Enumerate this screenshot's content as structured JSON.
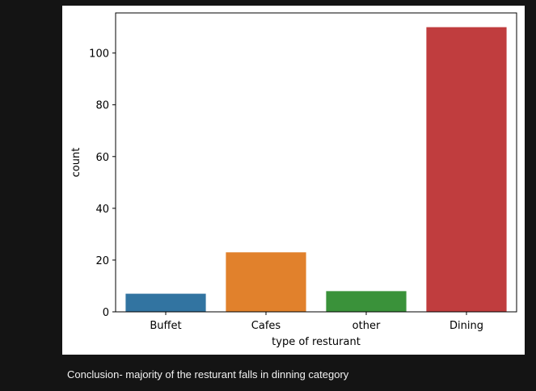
{
  "chart_data": {
    "type": "bar",
    "categories": [
      "Buffet",
      "Cafes",
      "other",
      "Dining"
    ],
    "values": [
      7,
      23,
      8,
      110
    ],
    "colors": [
      "#3274a1",
      "#e1812c",
      "#3a923a",
      "#c03d3e"
    ],
    "xlabel": "type of resturant",
    "ylabel": "count",
    "ylim": [
      0,
      115.5
    ],
    "yticks": [
      0,
      20,
      40,
      60,
      80,
      100
    ],
    "grid": false,
    "legend": "none"
  },
  "caption": "Conclusion- majority of the resturant falls in dinning category"
}
